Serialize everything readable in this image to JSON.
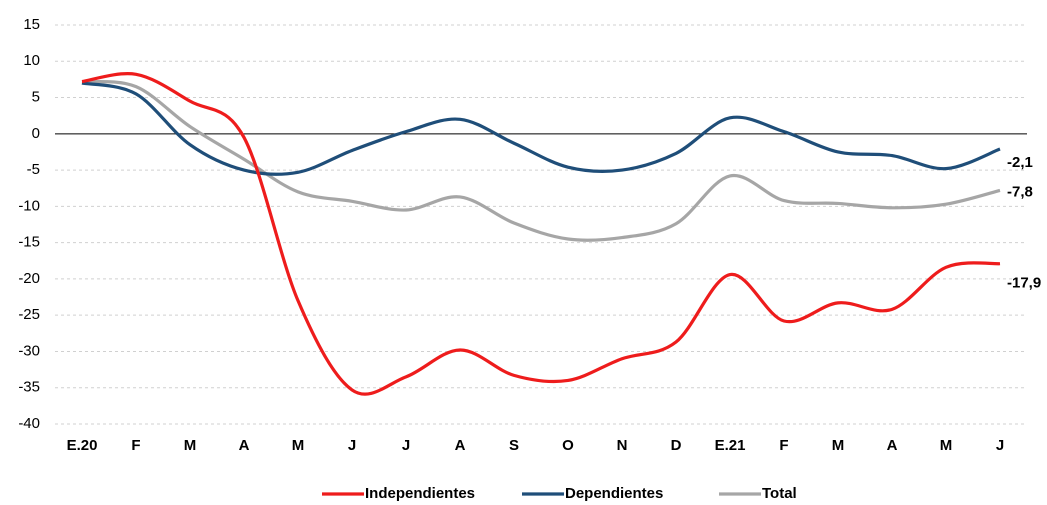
{
  "chart_data": {
    "type": "line",
    "categories": [
      "E.20",
      "F",
      "M",
      "A",
      "M",
      "J",
      "J",
      "A",
      "S",
      "O",
      "N",
      "D",
      "E.21",
      "F",
      "M",
      "A",
      "M",
      "J"
    ],
    "series": [
      {
        "name": "Independientes",
        "color": "#ee1c1c",
        "values": [
          7.2,
          8.2,
          4.5,
          -0.5,
          -23,
          -35.3,
          -33.5,
          -29.8,
          -33.3,
          -34.0,
          -31.0,
          -28.7,
          -19.4,
          -25.8,
          -23.3,
          -24.2,
          -18.4,
          -17.9
        ],
        "value_labels": [
          null,
          null,
          null,
          null,
          null,
          null,
          null,
          null,
          null,
          null,
          null,
          null,
          null,
          null,
          null,
          null,
          null,
          "-17,9"
        ]
      },
      {
        "name": "Dependientes",
        "color": "#1f4e79",
        "values": [
          7.0,
          5.5,
          -1.5,
          -5.0,
          -5.3,
          -2.3,
          0.3,
          2.0,
          -1.3,
          -4.6,
          -5.0,
          -2.7,
          2.2,
          0.3,
          -2.5,
          -3.0,
          -4.8,
          -2.1
        ],
        "value_labels": [
          null,
          null,
          null,
          null,
          null,
          null,
          null,
          null,
          null,
          null,
          null,
          null,
          null,
          null,
          null,
          null,
          null,
          "-2,1"
        ]
      },
      {
        "name": "Total",
        "color": "#a6a6a6",
        "values": [
          7.2,
          6.5,
          1.0,
          -3.5,
          -8.0,
          -9.3,
          -10.5,
          -8.7,
          -12.3,
          -14.5,
          -14.3,
          -12.4,
          -5.8,
          -9.2,
          -9.6,
          -10.2,
          -9.7,
          -7.8
        ],
        "value_labels": [
          null,
          null,
          null,
          null,
          null,
          null,
          null,
          null,
          null,
          null,
          null,
          null,
          null,
          null,
          null,
          null,
          null,
          "-7,8"
        ]
      }
    ],
    "ylim": [
      -40,
      15
    ],
    "yticks": [
      -40,
      -35,
      -30,
      -25,
      -20,
      -15,
      -10,
      -5,
      0,
      5,
      10,
      15
    ],
    "grid": true,
    "legend": "bottom"
  }
}
